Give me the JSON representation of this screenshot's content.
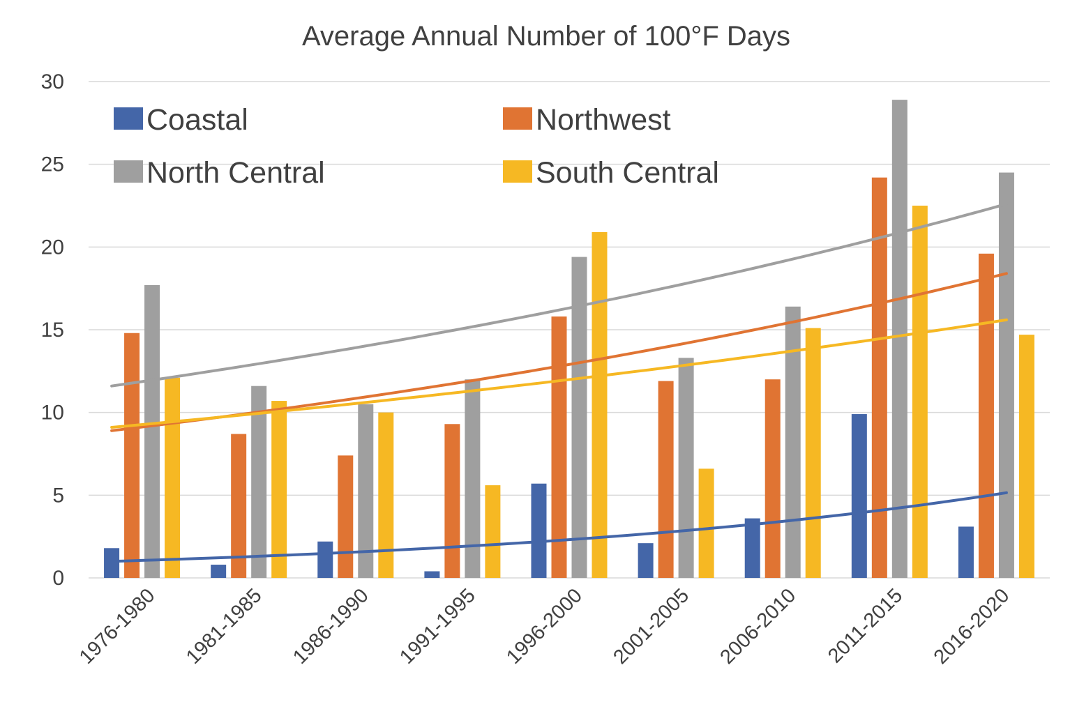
{
  "chart_data": {
    "type": "bar",
    "title": "Average Annual Number of 100°F Days",
    "xlabel": "",
    "ylabel": "",
    "ylim": [
      0,
      30
    ],
    "yticks": [
      0,
      5,
      10,
      15,
      20,
      25,
      30
    ],
    "grid": true,
    "legend_position": "top (inside plot, 2 columns)",
    "categories": [
      "1976-1980",
      "1981-1985",
      "1986-1990",
      "1991-1995",
      "1996-2000",
      "2001-2005",
      "2006-2010",
      "2011-2015",
      "2016-2020"
    ],
    "series": [
      {
        "name": "Coastal",
        "color": "#4466a8",
        "values": [
          1.8,
          0.8,
          2.2,
          0.4,
          5.7,
          2.1,
          3.6,
          9.9,
          3.1
        ],
        "trendline": {
          "type": "exponential",
          "start": 1.0,
          "end": 5.15
        }
      },
      {
        "name": "Northwest",
        "color": "#e07433",
        "values": [
          14.8,
          8.7,
          7.4,
          9.3,
          15.8,
          11.9,
          12.0,
          24.2,
          19.6
        ],
        "trendline": {
          "type": "exponential",
          "start": 8.9,
          "end": 18.4
        }
      },
      {
        "name": "North Central",
        "color": "#9f9f9f",
        "values": [
          17.7,
          11.6,
          10.5,
          12.0,
          19.4,
          13.3,
          16.4,
          28.9,
          24.5
        ],
        "trendline": {
          "type": "exponential",
          "start": 11.6,
          "end": 22.6
        }
      },
      {
        "name": "South Central",
        "color": "#f6b823",
        "values": [
          12.1,
          10.7,
          10.0,
          5.6,
          20.9,
          6.6,
          15.1,
          22.5,
          14.7
        ],
        "trendline": {
          "type": "exponential",
          "start": 9.1,
          "end": 15.6
        }
      }
    ]
  }
}
